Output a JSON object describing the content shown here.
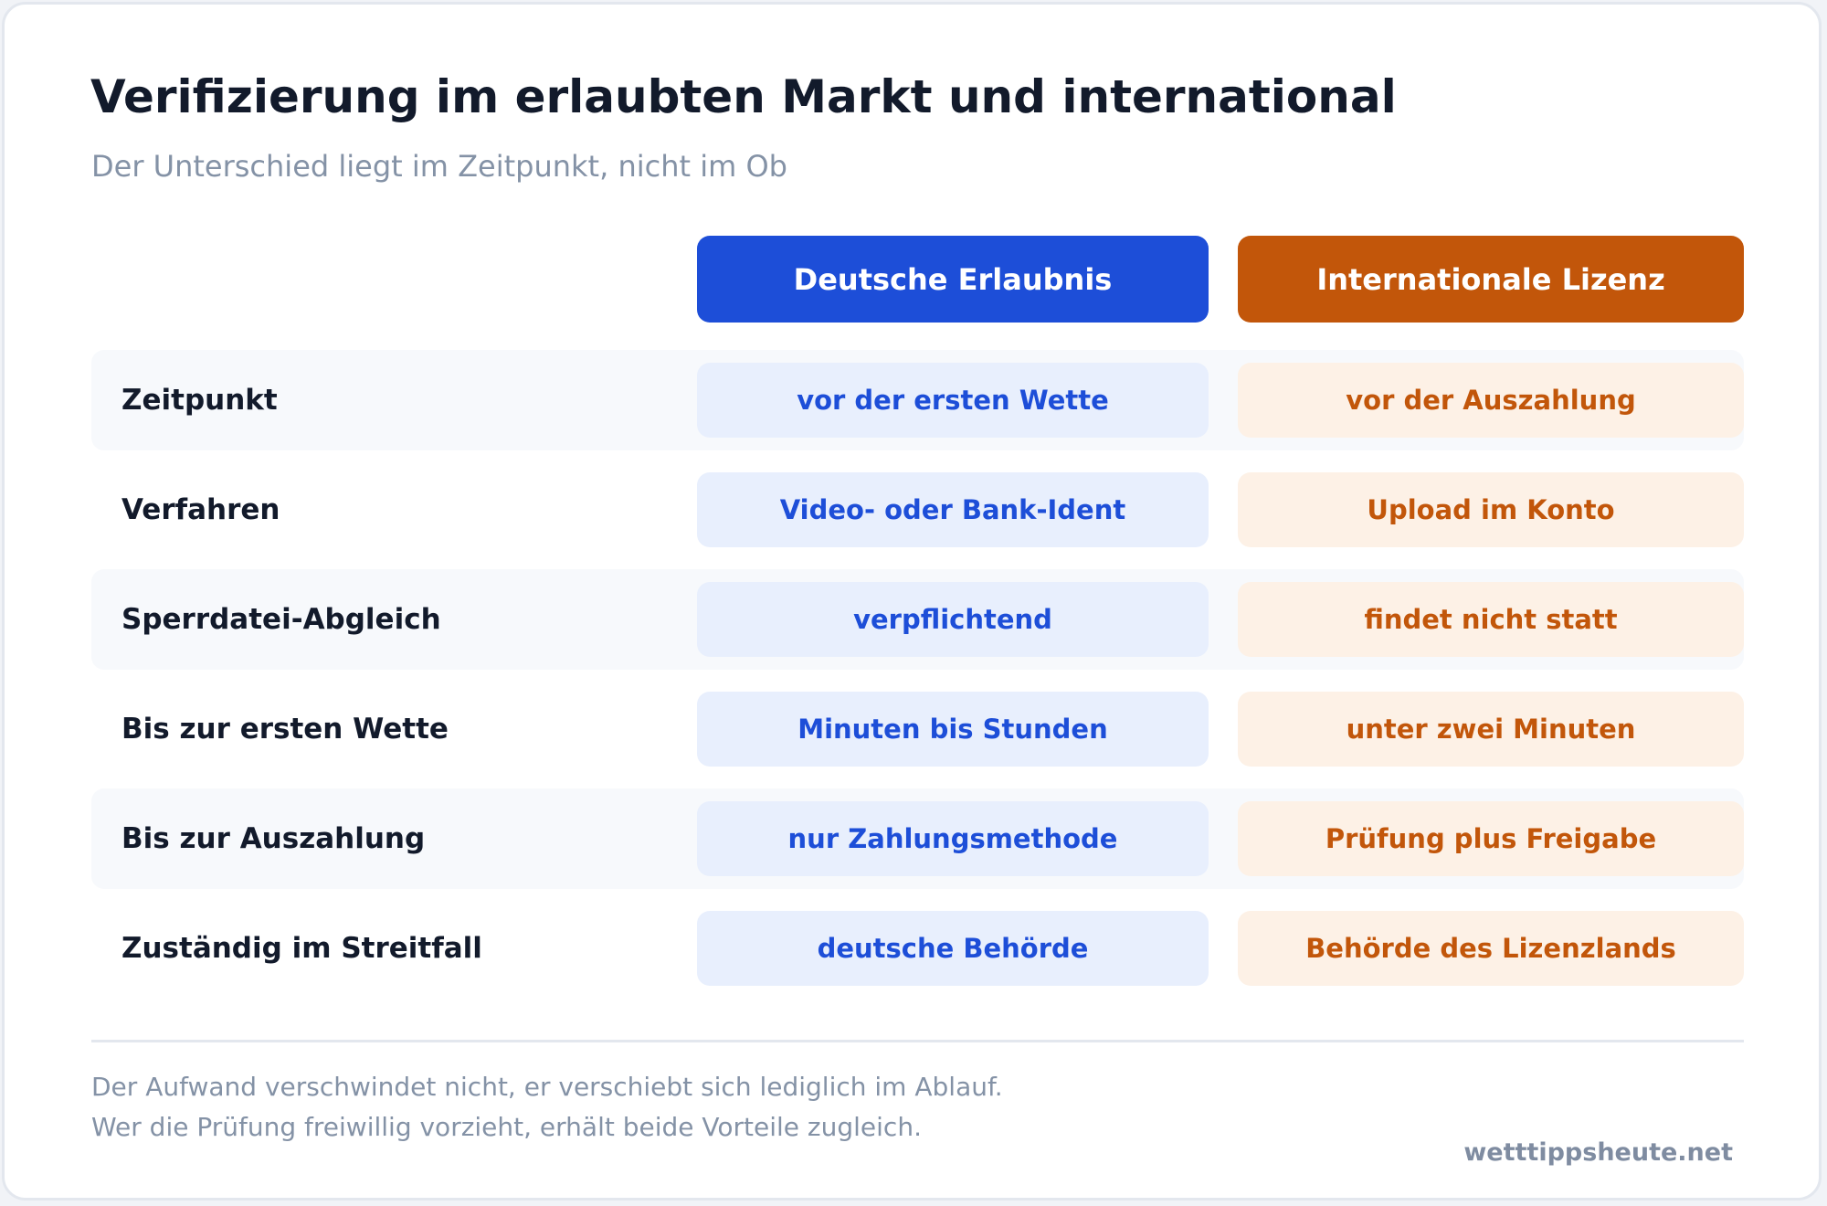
{
  "title": "Verifizierung im erlaubten Markt und international",
  "subtitle": "Der Unterschied liegt im Zeitpunkt, nicht im Ob",
  "columns": {
    "german": {
      "label": "Deutsche Erlaubnis",
      "accent": "#1d4ed8"
    },
    "international": {
      "label": "Internationale Lizenz",
      "accent": "#c2560a"
    }
  },
  "rows": [
    {
      "label": "Zeitpunkt",
      "german": "vor der ersten Wette",
      "international": "vor der Auszahlung"
    },
    {
      "label": "Verfahren",
      "german": "Video- oder Bank-Ident",
      "international": "Upload im Konto"
    },
    {
      "label": "Sperrdatei-Abgleich",
      "german": "verpflichtend",
      "international": "findet nicht statt"
    },
    {
      "label": "Bis zur ersten Wette",
      "german": "Minuten bis Stunden",
      "international": "unter zwei Minuten"
    },
    {
      "label": "Bis zur Auszahlung",
      "german": "nur Zahlungsmethode",
      "international": "Prüfung plus Freigabe"
    },
    {
      "label": "Zuständig im Streitfall",
      "german": "deutsche Behörde",
      "international": "Behörde des Lizenzlands"
    }
  ],
  "footer": {
    "line1": "Der Aufwand verschwindet nicht, er verschiebt sich lediglich im Ablauf.",
    "line2": "Wer die Prüfung freiwillig vorzieht, erhält beide Vorteile zugleich.",
    "brand": "wetttippsheute.net"
  }
}
